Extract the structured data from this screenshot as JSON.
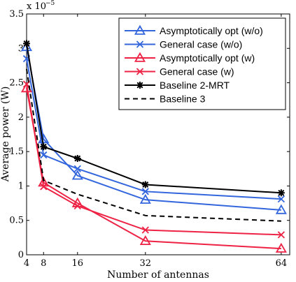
{
  "chart_data": {
    "type": "line",
    "xlabel": "Number of antennas",
    "ylabel": "Average power (W)",
    "y_scale_label": "x 10",
    "y_scale_exponent": "−5",
    "x_ticks": [
      4,
      8,
      16,
      32,
      64
    ],
    "y_ticks": [
      0,
      0.5,
      1,
      1.5,
      2,
      2.5,
      3,
      3.5
    ],
    "x_tick_labels": [
      "4",
      "8",
      "16",
      "32",
      "64"
    ],
    "y_tick_labels": [
      "0",
      "0.5",
      "1",
      "1.5",
      "2",
      "2.5",
      "3",
      "3.5"
    ],
    "xlim": [
      4,
      66
    ],
    "ylim": [
      0,
      3.5
    ],
    "grid": false,
    "legend_position": "top-right",
    "x": [
      4,
      8,
      16,
      32,
      64
    ],
    "series": [
      {
        "name": "Asymptotically opt (w/o)",
        "values": [
          3.02,
          1.68,
          1.15,
          0.8,
          0.65
        ],
        "color": "#3366dd",
        "marker": "triangle",
        "dash": "solid"
      },
      {
        "name": "General case (w/o)",
        "values": [
          2.85,
          1.45,
          1.25,
          0.92,
          0.81
        ],
        "color": "#3366dd",
        "marker": "x",
        "dash": "solid"
      },
      {
        "name": "Asymptotically opt (w)",
        "values": [
          2.42,
          1.05,
          0.75,
          0.2,
          0.09
        ],
        "color": "#ee2244",
        "marker": "triangle",
        "dash": "solid"
      },
      {
        "name": "General case (w)",
        "values": [
          2.48,
          0.99,
          0.71,
          0.36,
          0.29
        ],
        "color": "#ee2244",
        "marker": "x",
        "dash": "solid"
      },
      {
        "name": "Baseline 2-MRT",
        "values": [
          3.07,
          1.57,
          1.4,
          1.02,
          0.9
        ],
        "color": "#000000",
        "marker": "star",
        "dash": "solid"
      },
      {
        "name": "Baseline 3",
        "values": [
          2.7,
          1.08,
          0.88,
          0.57,
          0.49
        ],
        "color": "#000000",
        "marker": "none",
        "dash": "dashed"
      }
    ]
  }
}
